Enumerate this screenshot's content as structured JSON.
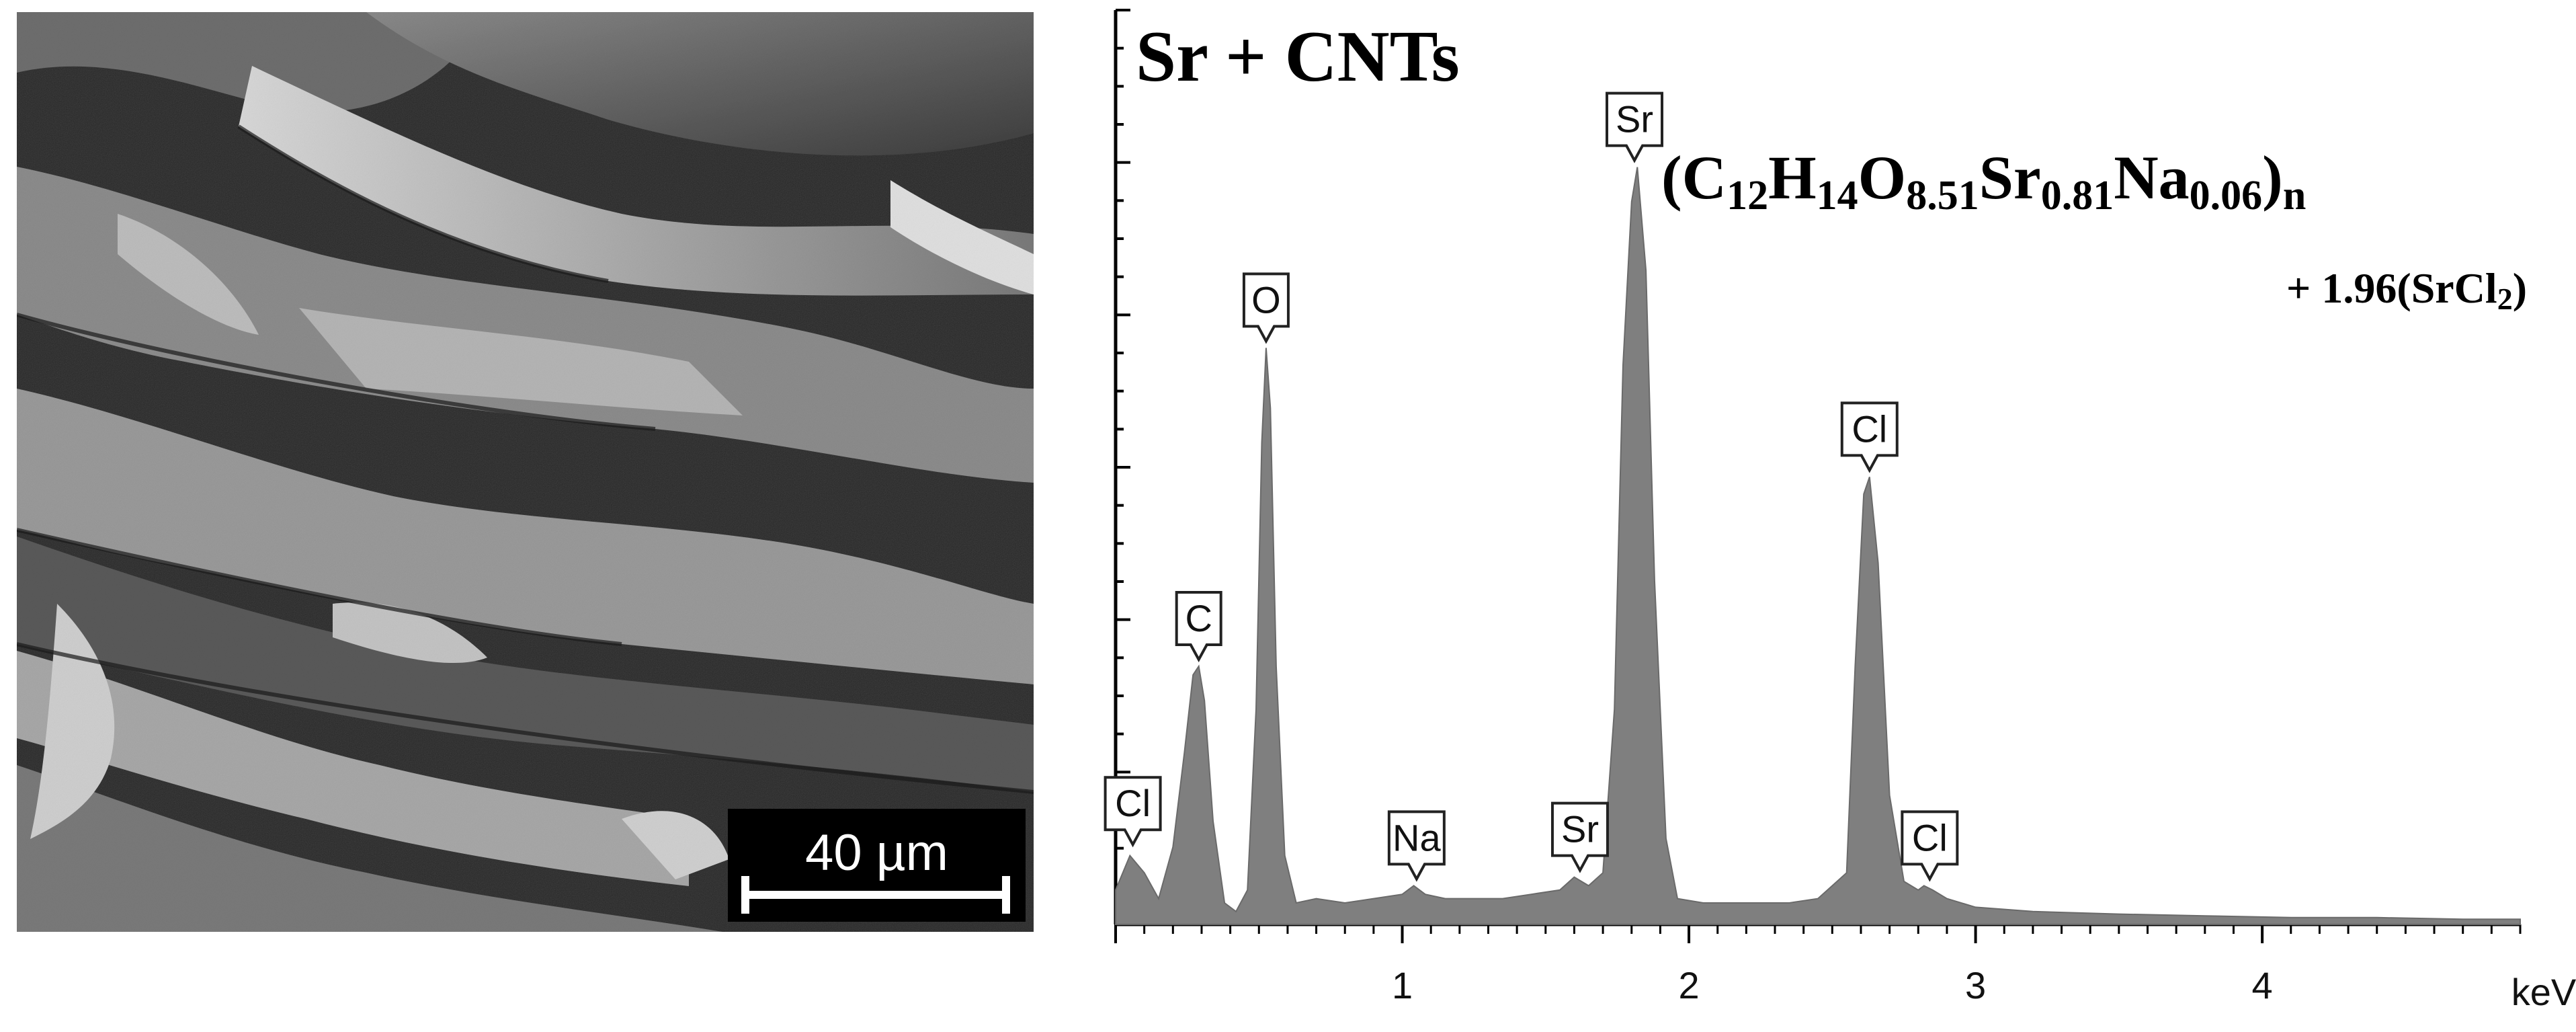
{
  "figure": {
    "sem_image": {
      "scale_label": "40 µm"
    },
    "colors": {
      "spectrum_fill": "#7f7f7f",
      "axis": "#000000"
    }
  },
  "chart_data": {
    "type": "area",
    "title": "Sr + CNTs",
    "formula": {
      "base": [
        "C",
        "12",
        "H",
        "14",
        "O",
        "8.51",
        "Sr",
        "0.81",
        "Na",
        "0.06",
        "n"
      ],
      "addition": "+ 1.96(SrCl",
      "addition_sub": "2",
      "addition_close": ")"
    },
    "xlabel": "keV",
    "ylabel": "",
    "xlim": [
      0.0,
      4.9
    ],
    "ylim": [
      0,
      1000
    ],
    "x_ticks": [
      1,
      2,
      3,
      4
    ],
    "x_tick_labels": [
      "1",
      "2",
      "3",
      "4"
    ],
    "series": [
      {
        "values": [
          [
            0.0,
            40
          ],
          [
            0.05,
            80
          ],
          [
            0.1,
            60
          ],
          [
            0.15,
            30
          ],
          [
            0.2,
            90
          ],
          [
            0.24,
            200
          ],
          [
            0.27,
            290
          ],
          [
            0.29,
            300
          ],
          [
            0.31,
            260
          ],
          [
            0.34,
            120
          ],
          [
            0.38,
            25
          ],
          [
            0.42,
            15
          ],
          [
            0.46,
            40
          ],
          [
            0.49,
            250
          ],
          [
            0.51,
            560
          ],
          [
            0.525,
            670
          ],
          [
            0.54,
            600
          ],
          [
            0.56,
            300
          ],
          [
            0.59,
            80
          ],
          [
            0.63,
            25
          ],
          [
            0.7,
            30
          ],
          [
            0.8,
            25
          ],
          [
            0.9,
            30
          ],
          [
            1.0,
            35
          ],
          [
            1.04,
            45
          ],
          [
            1.08,
            35
          ],
          [
            1.15,
            30
          ],
          [
            1.25,
            30
          ],
          [
            1.35,
            30
          ],
          [
            1.45,
            35
          ],
          [
            1.55,
            40
          ],
          [
            1.6,
            55
          ],
          [
            1.65,
            45
          ],
          [
            1.7,
            60
          ],
          [
            1.74,
            250
          ],
          [
            1.77,
            650
          ],
          [
            1.8,
            840
          ],
          [
            1.82,
            880
          ],
          [
            1.85,
            760
          ],
          [
            1.88,
            400
          ],
          [
            1.92,
            100
          ],
          [
            1.96,
            30
          ],
          [
            2.05,
            25
          ],
          [
            2.15,
            25
          ],
          [
            2.25,
            25
          ],
          [
            2.35,
            25
          ],
          [
            2.45,
            30
          ],
          [
            2.55,
            60
          ],
          [
            2.58,
            300
          ],
          [
            2.61,
            500
          ],
          [
            2.63,
            520
          ],
          [
            2.66,
            420
          ],
          [
            2.7,
            150
          ],
          [
            2.75,
            50
          ],
          [
            2.8,
            40
          ],
          [
            2.82,
            45
          ],
          [
            2.85,
            40
          ],
          [
            2.9,
            30
          ],
          [
            3.0,
            20
          ],
          [
            3.2,
            15
          ],
          [
            3.5,
            12
          ],
          [
            3.8,
            10
          ],
          [
            4.1,
            8
          ],
          [
            4.4,
            8
          ],
          [
            4.7,
            6
          ],
          [
            4.9,
            6
          ]
        ]
      }
    ],
    "peak_labels": [
      {
        "label": "Cl",
        "x": 0.06,
        "y": 85
      },
      {
        "label": "C",
        "x": 0.29,
        "y": 300
      },
      {
        "label": "O",
        "x": 0.525,
        "y": 670
      },
      {
        "label": "Na",
        "x": 1.05,
        "y": 45
      },
      {
        "label": "Sr",
        "x": 1.62,
        "y": 55
      },
      {
        "label": "Sr",
        "x": 1.81,
        "y": 880
      },
      {
        "label": "Cl",
        "x": 2.63,
        "y": 520
      },
      {
        "label": "Cl",
        "x": 2.84,
        "y": 45
      }
    ],
    "grid": false,
    "legend": "none"
  }
}
